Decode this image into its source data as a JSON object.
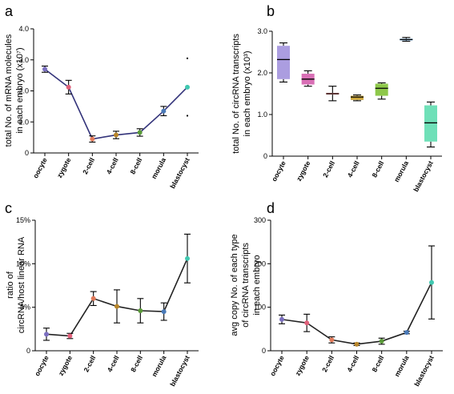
{
  "chart_data": [
    {
      "panel": "a",
      "type": "line",
      "ylabel_lines": [
        "total No. of mRNA molecules",
        "in each embryo (x10⁷)"
      ],
      "categories": [
        "oocyte",
        "zygote",
        "2-cell",
        "4-cell",
        "8-cell",
        "morula",
        "blastocyst"
      ],
      "ylim": [
        0,
        4
      ],
      "yticks": [
        "0",
        "1.0",
        "2.0",
        "3.0",
        "4.0"
      ],
      "values": [
        2.7,
        2.12,
        0.45,
        0.58,
        0.66,
        1.35,
        2.12
      ],
      "errors": [
        0.1,
        0.22,
        0.1,
        0.12,
        0.12,
        0.15,
        0
      ],
      "point_colors": [
        "#7b6fc0",
        "#e0607a",
        "#e07a5a",
        "#b8862a",
        "#5a9a3a",
        "#4a7ab8",
        "#40c8b0"
      ],
      "extra_points": [
        {
          "category": "blastocyst",
          "value": 3.05
        },
        {
          "category": "blastocyst",
          "value": 1.2
        }
      ],
      "grid": false
    },
    {
      "panel": "b",
      "type": "box",
      "ylabel_lines": [
        "total No. of circRNA transcripts",
        "in each embryo (x10³)"
      ],
      "categories": [
        "oocyte",
        "zygote",
        "2-cell",
        "4-cell",
        "8-cell",
        "morula",
        "blastocyst"
      ],
      "ylim": [
        0,
        3
      ],
      "yticks": [
        "0",
        "1.0",
        "2.0",
        "3.0"
      ],
      "boxes": [
        {
          "min": 1.78,
          "q1": 1.85,
          "median": 2.32,
          "q3": 2.65,
          "max": 2.72,
          "color": "#ab9de0"
        },
        {
          "min": 1.68,
          "q1": 1.72,
          "median": 1.85,
          "q3": 1.98,
          "max": 2.05,
          "color": "#d86fb5"
        },
        {
          "min": 1.33,
          "q1": 1.48,
          "median": 1.5,
          "q3": 1.52,
          "max": 1.68,
          "color": "#f08a8a"
        },
        {
          "min": 1.33,
          "q1": 1.35,
          "median": 1.42,
          "q3": 1.45,
          "max": 1.47,
          "color": "#c9a43a"
        },
        {
          "min": 1.37,
          "q1": 1.45,
          "median": 1.63,
          "q3": 1.74,
          "max": 1.76,
          "color": "#8ec84a"
        },
        {
          "min": 2.76,
          "q1": 2.78,
          "median": 2.8,
          "q3": 2.82,
          "max": 2.85,
          "color": "#6fa8d8"
        },
        {
          "min": 0.22,
          "q1": 0.35,
          "median": 0.8,
          "q3": 1.22,
          "max": 1.3,
          "color": "#6fe0b8"
        }
      ],
      "grid": false
    },
    {
      "panel": "c",
      "type": "line",
      "ylabel_lines": [
        "ratio of",
        "circRNA/host linear RNA"
      ],
      "categories": [
        "oocyte",
        "zygote",
        "2-cell",
        "4-cell",
        "8-cell",
        "morula",
        "blastocyst"
      ],
      "ylim": [
        0,
        15
      ],
      "yticks": [
        "0",
        "5%",
        "10%",
        "15%"
      ],
      "values": [
        1.9,
        1.7,
        6.0,
        5.1,
        4.6,
        4.5,
        10.6
      ],
      "errors": [
        0.7,
        0.3,
        0.8,
        1.9,
        1.4,
        1.0,
        2.8
      ],
      "point_colors": [
        "#7b6fc0",
        "#e0607a",
        "#e07a5a",
        "#b8862a",
        "#5a9a3a",
        "#4a7ab8",
        "#40c8b0"
      ],
      "grid": false
    },
    {
      "panel": "d",
      "type": "line",
      "ylabel_lines": [
        "avg copy No. of each type",
        "of circRNA transcripts",
        "in each embryo"
      ],
      "categories": [
        "oocyte",
        "zygote",
        "2-cell",
        "4-cell",
        "8-cell",
        "morula",
        "blastocyst"
      ],
      "ylim": [
        0,
        300
      ],
      "yticks": [
        "0",
        "100",
        "200",
        "300"
      ],
      "values": [
        72,
        64,
        25,
        15,
        22,
        42,
        157
      ],
      "errors": [
        10,
        20,
        7,
        3,
        7,
        3,
        84
      ],
      "point_colors": [
        "#7b6fc0",
        "#e0607a",
        "#e07a5a",
        "#b8862a",
        "#5a9a3a",
        "#4a7ab8",
        "#40c8b0"
      ],
      "grid": false
    }
  ]
}
